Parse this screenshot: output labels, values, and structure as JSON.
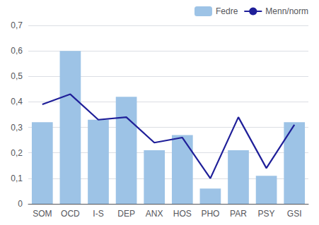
{
  "chart_data": {
    "type": "bar",
    "categories": [
      "SOM",
      "OCD",
      "I-S",
      "DEP",
      "ANX",
      "HOS",
      "PHO",
      "PAR",
      "PSY",
      "GSI"
    ],
    "series": [
      {
        "name": "Fedre",
        "type": "bar",
        "color": "#9DC3E6",
        "values": [
          0.32,
          0.6,
          0.33,
          0.42,
          0.21,
          0.27,
          0.06,
          0.21,
          0.11,
          0.32
        ]
      },
      {
        "name": "Menn/norm",
        "type": "line",
        "color": "#1F1F99",
        "values": [
          0.39,
          0.43,
          0.33,
          0.34,
          0.24,
          0.26,
          0.1,
          0.34,
          0.14,
          0.31
        ]
      }
    ],
    "ylim": [
      0,
      0.7
    ],
    "yticks": [
      0,
      {
        "value": 0.1,
        "label": "0,1"
      },
      {
        "value": 0.2,
        "label": "0,2"
      },
      {
        "value": 0.3,
        "label": "0,3"
      },
      {
        "value": 0.4,
        "label": "0,4"
      },
      {
        "value": 0.5,
        "label": "0,5"
      },
      {
        "value": 0.6,
        "label": "0,6"
      },
      {
        "value": 0.7,
        "label": "0,7"
      }
    ],
    "grid": true,
    "legend": "upper right"
  }
}
